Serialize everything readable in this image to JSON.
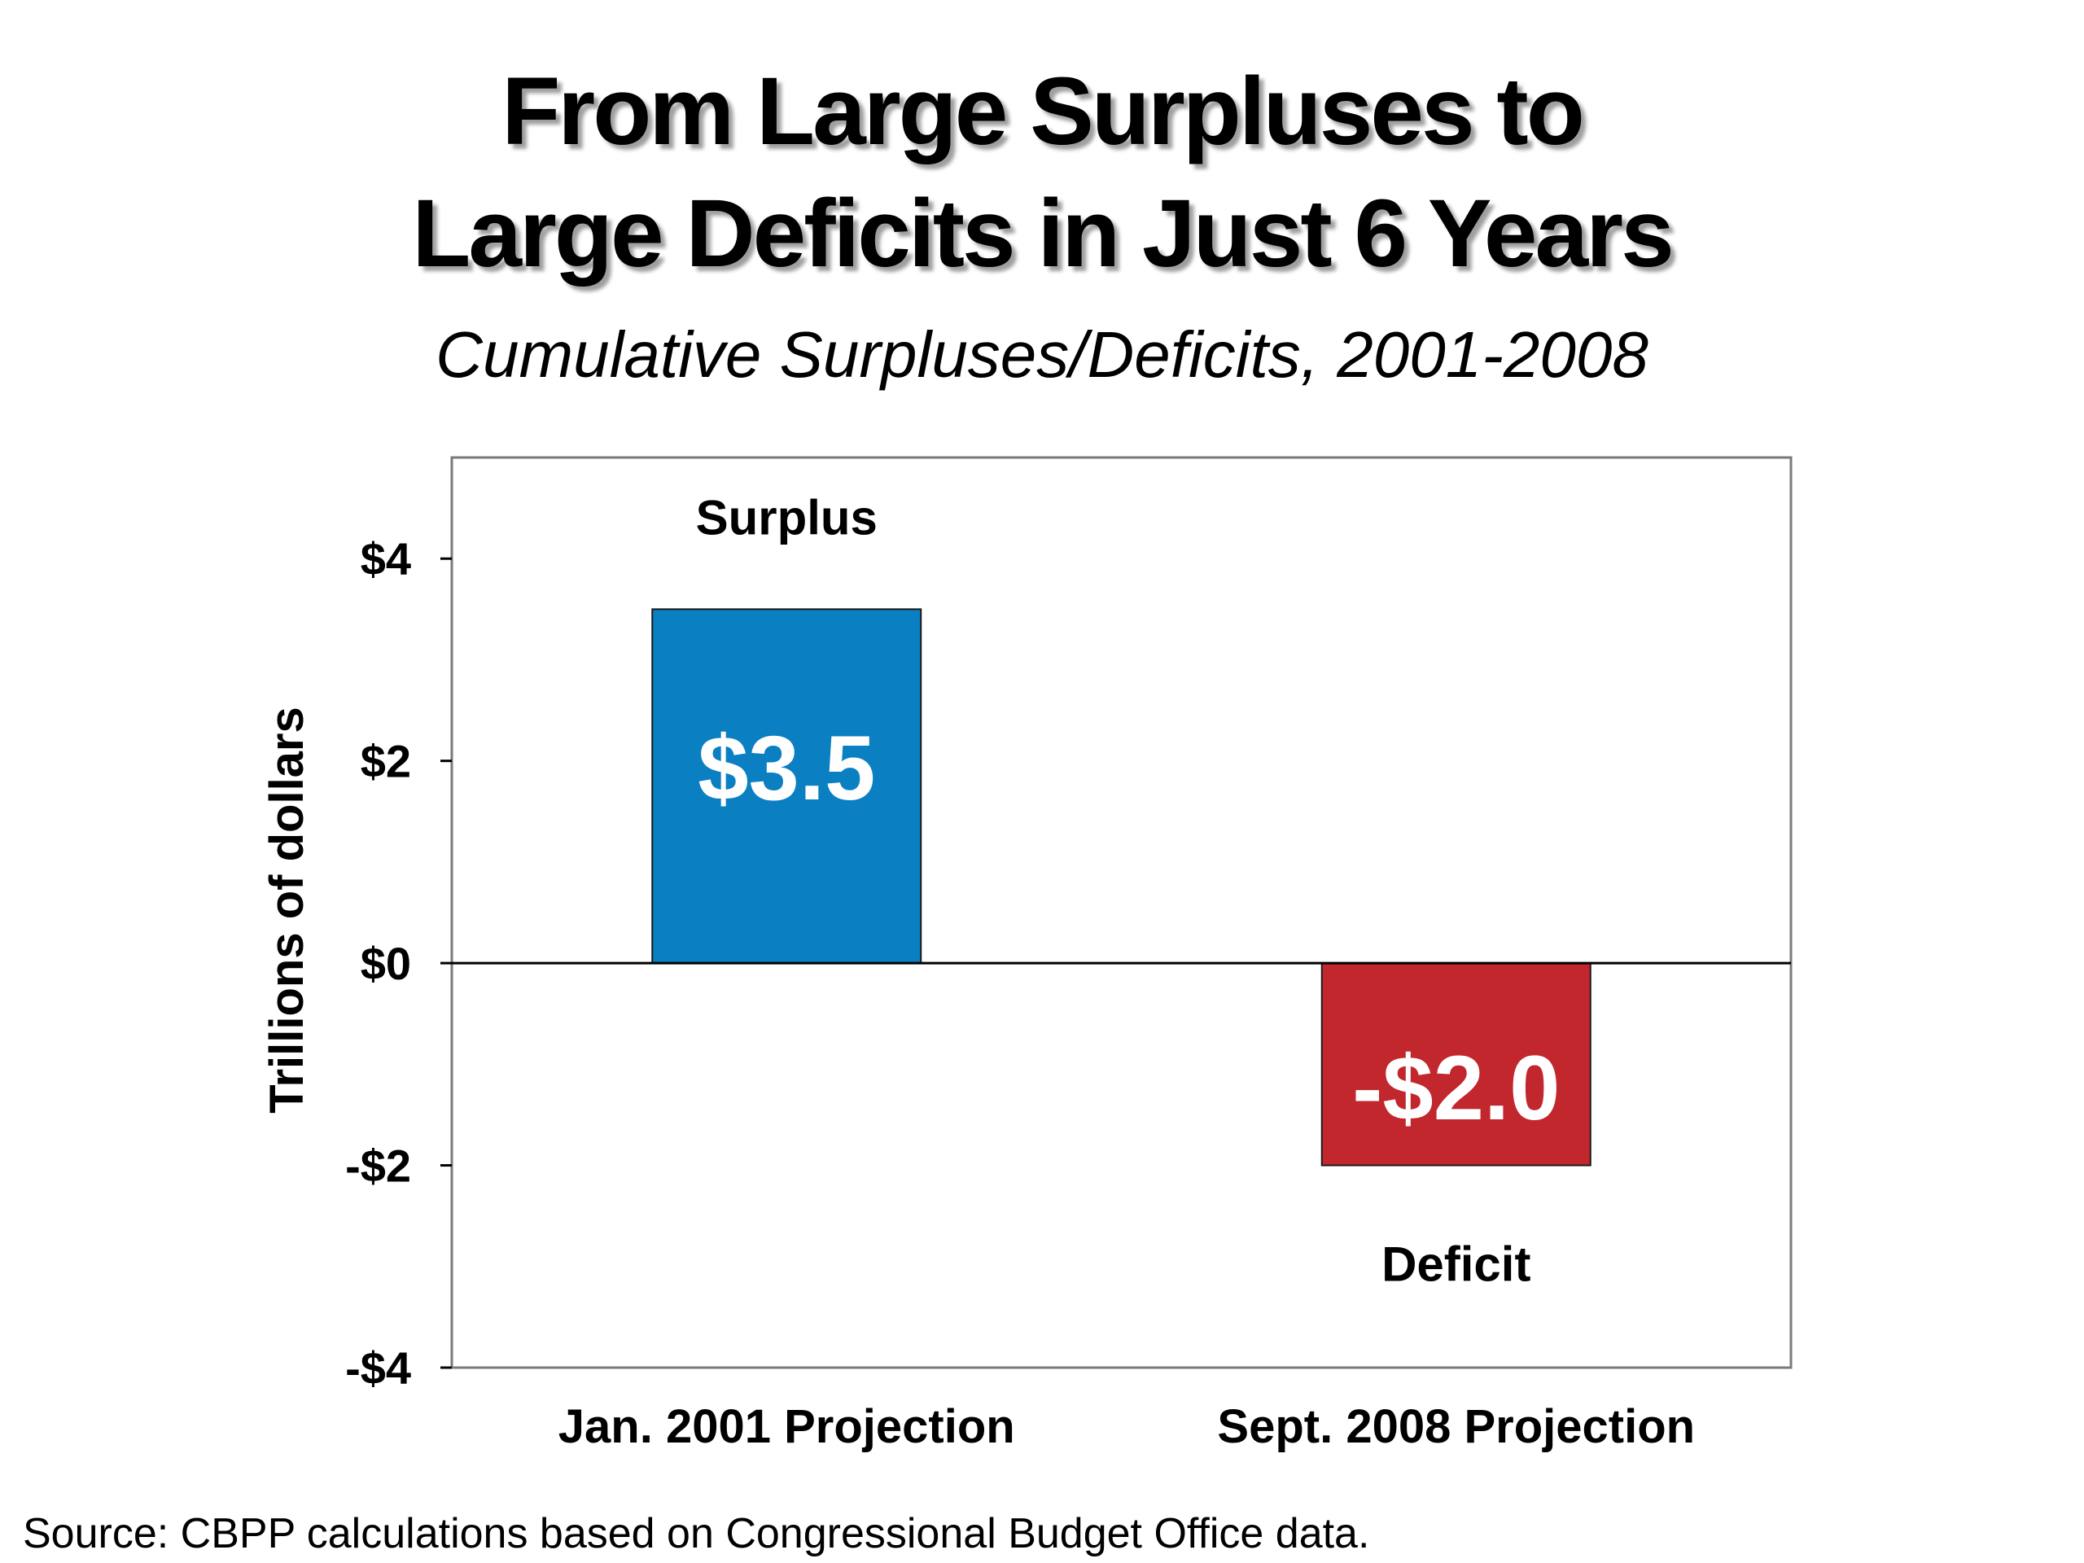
{
  "chart_data": {
    "type": "bar",
    "title_line1": "From Large Surpluses to",
    "title_line2": "Large Deficits in Just 6 Years",
    "subtitle": "Cumulative Surpluses/Deficits, 2001-2008",
    "ylabel": "Trillions of dollars",
    "xlabel": "",
    "categories": [
      "Jan. 2001 Projection",
      "Sept. 2008 Projection"
    ],
    "values": [
      3.5,
      -2.0
    ],
    "data_labels": [
      "$3.5",
      "-$2.0"
    ],
    "annotations": [
      "Surplus",
      "Deficit"
    ],
    "ylim": [
      -4,
      5
    ],
    "yticks": [
      4,
      2,
      0,
      -2,
      -4
    ],
    "ytick_labels": [
      "$4",
      "$2",
      "$0",
      "-$2",
      "-$4"
    ],
    "bar_colors": [
      "#0a7fc2",
      "#c1272d"
    ],
    "grid": false,
    "legend": "none"
  },
  "source_note": "Source: CBPP calculations based on Congressional Budget Office data."
}
